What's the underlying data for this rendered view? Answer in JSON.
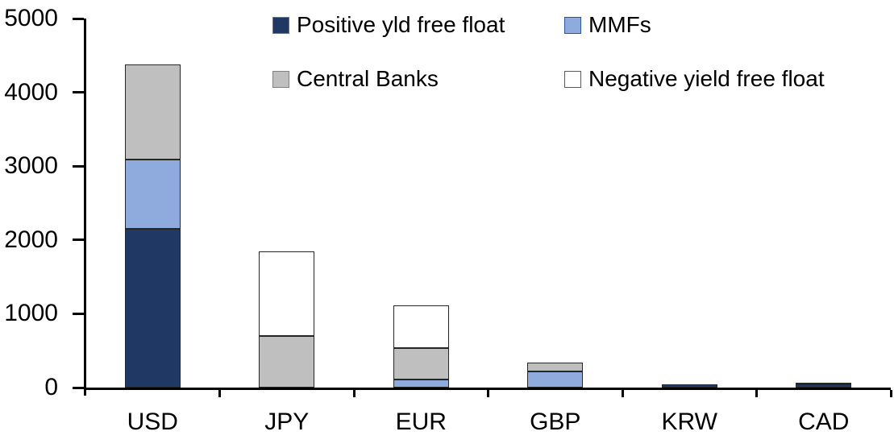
{
  "chart_data": {
    "type": "bar",
    "stacked": true,
    "title": "",
    "xlabel": "",
    "ylabel": "",
    "categories": [
      "USD",
      "JPY",
      "EUR",
      "GBP",
      "KRW",
      "CAD"
    ],
    "series": [
      {
        "name": "Positive yld free float",
        "color": "#1F3864",
        "marker_border": "#6E7380",
        "values": [
          2150,
          0,
          0,
          0,
          45,
          40
        ]
      },
      {
        "name": "MMFs",
        "color": "#8FAADC",
        "marker_border": "#2F5597",
        "values": [
          940,
          0,
          105,
          220,
          0,
          0
        ]
      },
      {
        "name": "Central Banks",
        "color": "#BFBFBF",
        "marker_border": "#808080",
        "values": [
          1290,
          700,
          435,
          120,
          0,
          30
        ]
      },
      {
        "name": "Negative yield free float",
        "color": "#FFFFFF",
        "marker_border": "#595959",
        "values": [
          0,
          1145,
          570,
          0,
          0,
          0
        ]
      }
    ],
    "ylim": [
      0,
      5000
    ],
    "ytick_interval": 1000,
    "ytick_labels": [
      "0",
      "1000",
      "2000",
      "3000",
      "4000",
      "5000"
    ],
    "grid": false,
    "legend_position": "top-center",
    "legend_columns": 2,
    "segment_border_color": "#262626"
  }
}
